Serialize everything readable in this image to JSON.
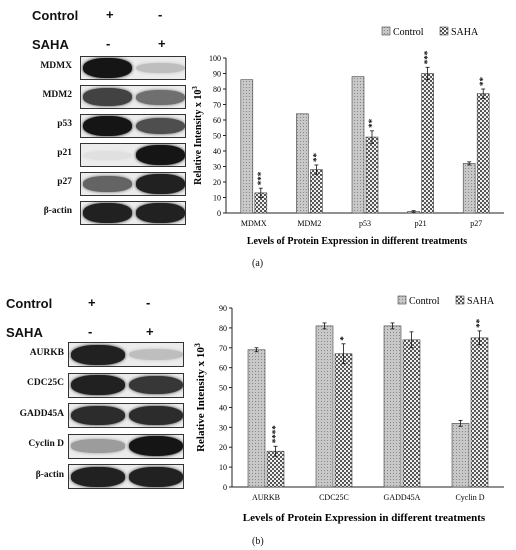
{
  "panels": [
    {
      "id": "a",
      "panel_label": "(a)",
      "western_blot": {
        "conditions": [
          {
            "name": "Control",
            "lanes": [
              "+",
              "-"
            ]
          },
          {
            "name": "SAHA",
            "lanes": [
              "-",
              "+"
            ]
          }
        ],
        "rows": [
          {
            "label": "MDMX",
            "lane1": 0.95,
            "lane2": 0.2
          },
          {
            "label": "MDM2",
            "lane1": 0.75,
            "lane2": 0.55
          },
          {
            "label": "p53",
            "lane1": 0.95,
            "lane2": 0.7
          },
          {
            "label": "p21",
            "lane1": 0.05,
            "lane2": 0.95
          },
          {
            "label": "p27",
            "lane1": 0.6,
            "lane2": 0.9
          },
          {
            "label": "β-actin",
            "lane1": 0.9,
            "lane2": 0.9
          }
        ]
      }
    },
    {
      "id": "b",
      "panel_label": "(b)",
      "western_blot": {
        "conditions": [
          {
            "name": "Control",
            "lanes": [
              "+",
              "-"
            ]
          },
          {
            "name": "SAHA",
            "lanes": [
              "-",
              "+"
            ]
          }
        ],
        "rows": [
          {
            "label": "AURKB",
            "lane1": 0.9,
            "lane2": 0.2
          },
          {
            "label": "CDC25C",
            "lane1": 0.9,
            "lane2": 0.8
          },
          {
            "label": "GADD45A",
            "lane1": 0.85,
            "lane2": 0.85
          },
          {
            "label": "Cyclin D",
            "lane1": 0.35,
            "lane2": 0.95
          },
          {
            "label": "β-actin",
            "lane1": 0.9,
            "lane2": 0.9
          }
        ]
      }
    }
  ],
  "chart_data": [
    {
      "type": "bar",
      "categories": [
        "MDMX",
        "MDM2",
        "p53",
        "p21",
        "p27"
      ],
      "series": [
        {
          "name": "Control",
          "values": [
            86,
            64,
            88,
            1,
            32
          ],
          "errors": [
            0,
            0,
            0,
            0.5,
            1
          ],
          "color": "#c8c8c8"
        },
        {
          "name": "SAHA",
          "values": [
            13,
            28,
            49,
            90,
            77
          ],
          "errors": [
            3,
            3,
            4,
            4,
            3
          ],
          "color": "#a9a9a9"
        }
      ],
      "significance": [
        null,
        "***",
        null,
        "**",
        null,
        "**",
        null,
        "***",
        null,
        "**"
      ],
      "xlabel": "Levels of Protein Expression in different treatments",
      "ylabel": "Relative Intensity x 10",
      "ylabel_sup": "3",
      "ylim": [
        0,
        100
      ],
      "yticks": [
        0,
        10,
        20,
        30,
        40,
        50,
        60,
        70,
        80,
        90,
        100
      ],
      "legend_position": "top-right",
      "grid": false
    },
    {
      "type": "bar",
      "categories": [
        "AURKB",
        "CDC25C",
        "GADD45A",
        "Cyclin D"
      ],
      "series": [
        {
          "name": "Control",
          "values": [
            69,
            81,
            81,
            32
          ],
          "errors": [
            1,
            1.5,
            1.5,
            1.5
          ],
          "color": "#c8c8c8"
        },
        {
          "name": "SAHA",
          "values": [
            18,
            67,
            74,
            75
          ],
          "errors": [
            2.5,
            5,
            4,
            3.5
          ],
          "color": "#a9a9a9"
        }
      ],
      "significance": [
        null,
        "****",
        null,
        "*",
        null,
        null,
        null,
        "**"
      ],
      "xlabel": "Levels of Protein Expression in different treatments",
      "ylabel": "Relative Intensity x 10",
      "ylabel_sup": "3",
      "ylim": [
        0,
        90
      ],
      "yticks": [
        0,
        10,
        20,
        30,
        40,
        50,
        60,
        70,
        80,
        90
      ],
      "legend_position": "top-right",
      "grid": false
    }
  ]
}
